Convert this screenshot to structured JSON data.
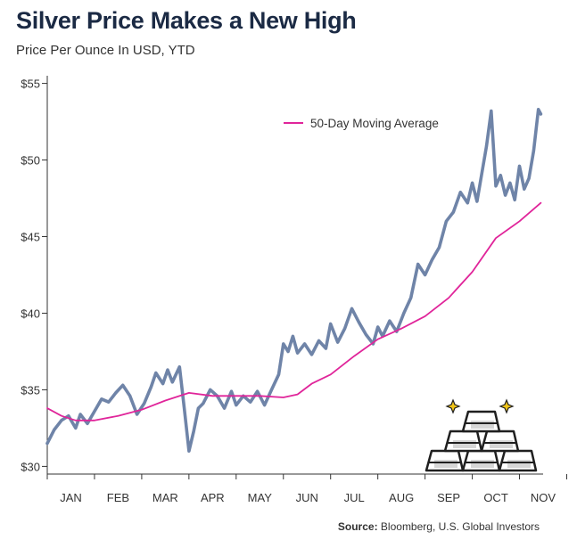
{
  "header": {
    "title": "Silver Price Makes a New High",
    "subtitle": "Price Per Ounce In USD, YTD"
  },
  "footer": {
    "source_label": "Source:",
    "source_text": "Bloomberg, U.S. Global Investors"
  },
  "graphic": {
    "icon": "silver-bars-icon"
  },
  "colors": {
    "price_line": "#6f84a8",
    "moving_average": "#e0259a",
    "title": "#1b2a44",
    "axis": "#333333"
  },
  "chart_data": {
    "type": "line",
    "title": "Silver Price Makes a New High",
    "subtitle": "Price Per Ounce In USD, YTD",
    "x_tick_labels": [
      "JAN",
      "FEB",
      "MAR",
      "APR",
      "MAY",
      "JUN",
      "JUL",
      "AUG",
      "SEP",
      "OCT",
      "NOV"
    ],
    "y_tick_labels": [
      "$30",
      "$35",
      "$40",
      "$45",
      "$50",
      "$55"
    ],
    "ylim": [
      29.5,
      55.5
    ],
    "xlim": [
      0,
      10.5
    ],
    "legend": {
      "position": "top-right",
      "entries": [
        "50-Day Moving Average"
      ]
    },
    "series": [
      {
        "key": "price",
        "color": "#6f84a8",
        "x": [
          0.0,
          0.15,
          0.3,
          0.45,
          0.6,
          0.7,
          0.85,
          1.0,
          1.15,
          1.3,
          1.45,
          1.6,
          1.75,
          1.9,
          2.05,
          2.2,
          2.3,
          2.45,
          2.55,
          2.65,
          2.8,
          2.9,
          3.0,
          3.1,
          3.2,
          3.3,
          3.45,
          3.6,
          3.75,
          3.9,
          4.0,
          4.15,
          4.3,
          4.45,
          4.6,
          4.75,
          4.9,
          5.0,
          5.1,
          5.2,
          5.3,
          5.45,
          5.6,
          5.75,
          5.9,
          6.0,
          6.15,
          6.3,
          6.45,
          6.6,
          6.75,
          6.9,
          7.0,
          7.1,
          7.25,
          7.4,
          7.55,
          7.7,
          7.85,
          8.0,
          8.15,
          8.3,
          8.45,
          8.6,
          8.75,
          8.9,
          9.0,
          9.1,
          9.2,
          9.3,
          9.4,
          9.5,
          9.6,
          9.7,
          9.8,
          9.9,
          10.0,
          10.1,
          10.2,
          10.3,
          10.4,
          10.45
        ],
        "y": [
          31.5,
          32.4,
          33.0,
          33.3,
          32.5,
          33.4,
          32.8,
          33.6,
          34.4,
          34.2,
          34.8,
          35.3,
          34.6,
          33.4,
          34.1,
          35.2,
          36.1,
          35.4,
          36.3,
          35.5,
          36.5,
          33.8,
          31.0,
          32.3,
          33.8,
          34.1,
          35.0,
          34.6,
          33.8,
          34.9,
          34.0,
          34.6,
          34.2,
          34.9,
          34.0,
          35.0,
          36.0,
          38.0,
          37.5,
          38.5,
          37.4,
          38.0,
          37.3,
          38.2,
          37.7,
          39.3,
          38.1,
          39.0,
          40.3,
          39.4,
          38.6,
          38.0,
          39.1,
          38.5,
          39.5,
          38.8,
          40.0,
          41.0,
          43.2,
          42.5,
          43.5,
          44.3,
          46.0,
          46.6,
          47.9,
          47.2,
          48.5,
          47.3,
          49.1,
          50.9,
          53.2,
          48.3,
          49.0,
          47.7,
          48.5,
          47.4,
          49.6,
          48.1,
          48.8,
          50.6,
          53.3,
          53.0
        ]
      },
      {
        "key": "ma50",
        "name": "50-Day Moving Average",
        "color": "#e0259a",
        "x": [
          0.0,
          0.3,
          0.6,
          1.0,
          1.5,
          2.0,
          2.5,
          3.0,
          3.5,
          4.0,
          4.5,
          5.0,
          5.3,
          5.6,
          6.0,
          6.5,
          7.0,
          7.5,
          8.0,
          8.5,
          9.0,
          9.5,
          10.0,
          10.45
        ],
        "y": [
          33.8,
          33.3,
          33.0,
          33.0,
          33.3,
          33.7,
          34.3,
          34.8,
          34.6,
          34.6,
          34.6,
          34.5,
          34.7,
          35.4,
          36.0,
          37.2,
          38.3,
          39.0,
          39.8,
          41.0,
          42.7,
          44.9,
          46.0,
          47.2
        ]
      }
    ]
  }
}
